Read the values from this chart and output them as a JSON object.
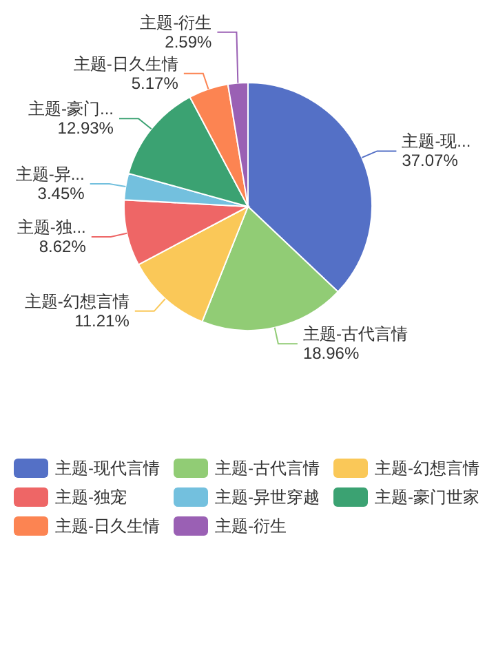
{
  "chart_data": {
    "type": "pie",
    "categories": [
      "主题-现代言情",
      "主题-古代言情",
      "主题-幻想言情",
      "主题-独宠",
      "主题-异世穿越",
      "主题-豪门世家",
      "主题-日久生情",
      "主题-衍生"
    ],
    "values": [
      37.07,
      18.96,
      11.21,
      8.62,
      3.45,
      12.93,
      5.17,
      2.59
    ],
    "value_labels": [
      "主题-现...\n37.07%",
      "主题-古代言情\n18.96%",
      "主题-幻想言情\n11.21%",
      "主题-独...\n8.62%",
      "主题-异...\n3.45%",
      "主题-豪门...\n12.93%",
      "主题-日久生情\n5.17%",
      "主题-衍生\n2.59%"
    ],
    "colors": [
      "#5470c6",
      "#91cc75",
      "#fac858",
      "#ee6666",
      "#73c0de",
      "#3ba272",
      "#fc8452",
      "#9a60b4"
    ],
    "legend": "bottom"
  }
}
